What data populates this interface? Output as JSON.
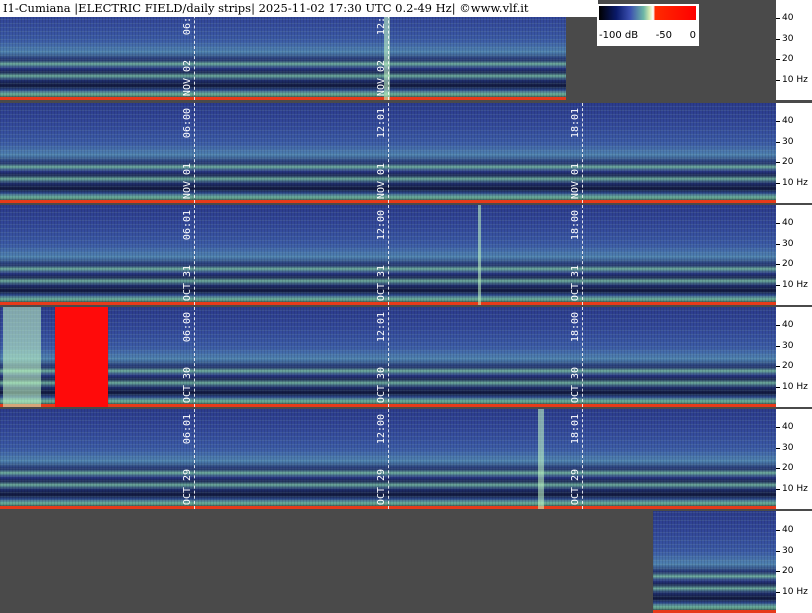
{
  "header": {
    "title": "I1-Cumiana |ELECTRIC FIELD/daily strips| 2025-11-02 17:30 UTC 0.2-49 Hz| ©www.vlf.it"
  },
  "legend": {
    "ticks": [
      "-100 dB",
      "-50",
      "0"
    ]
  },
  "colors": {
    "background": "#4a4a4a",
    "floor": "#e63a1a",
    "saturated": "#ff0000"
  },
  "chart_data": {
    "type": "heatmap",
    "title": "I1-Cumiana |ELECTRIC FIELD/daily strips| 2025-11-02 17:30 UTC 0.2-49 Hz| ©www.vlf.it",
    "colorbar": {
      "min": -100,
      "max": 0,
      "unit": "dB",
      "ticks": [
        "-100 dB",
        "-50",
        "0"
      ]
    },
    "y_axis": {
      "unit": "Hz",
      "range": [
        0.2,
        49
      ],
      "ticks": [
        "40",
        "30",
        "20",
        "10 Hz"
      ]
    },
    "strips": [
      {
        "name": "strip-nov02",
        "date": "NOV 02",
        "coverage": [
          0,
          17.5
        ],
        "markers": [
          {
            "hour": 6,
            "date": "NOV 02",
            "time": "06:01"
          },
          {
            "hour": 12,
            "date": "NOV 02",
            "time": "12:00"
          }
        ]
      },
      {
        "name": "strip-nov01",
        "date": "NOV 01",
        "coverage": [
          0,
          24
        ],
        "markers": [
          {
            "hour": 6,
            "date": "NOV 01",
            "time": "06:00"
          },
          {
            "hour": 12,
            "date": "NOV 01",
            "time": "12:01"
          },
          {
            "hour": 18,
            "date": "NOV 01",
            "time": "18:01"
          }
        ]
      },
      {
        "name": "strip-oct31",
        "date": "OCT 31",
        "coverage": [
          0,
          24
        ],
        "markers": [
          {
            "hour": 6,
            "date": "OCT 31",
            "time": "06:01"
          },
          {
            "hour": 12,
            "date": "OCT 31",
            "time": "12:00"
          },
          {
            "hour": 18,
            "date": "OCT 31",
            "time": "18:00"
          }
        ]
      },
      {
        "name": "strip-oct30",
        "date": "OCT 30",
        "coverage": [
          0,
          24
        ],
        "markers": [
          {
            "hour": 6,
            "date": "OCT 30",
            "time": "06:00"
          },
          {
            "hour": 12,
            "date": "OCT 30",
            "time": "12:01"
          },
          {
            "hour": 18,
            "date": "OCT 30",
            "time": "18:00"
          }
        ]
      },
      {
        "name": "strip-oct29",
        "date": "OCT 29",
        "coverage": [
          0,
          24
        ],
        "markers": [
          {
            "hour": 6,
            "date": "OCT 29",
            "time": "06:01"
          },
          {
            "hour": 12,
            "date": "OCT 29",
            "time": "12:00"
          },
          {
            "hour": 18,
            "date": "OCT 29",
            "time": "18:01"
          }
        ]
      },
      {
        "name": "strip-oct28",
        "date": "",
        "coverage": [
          20.2,
          24
        ],
        "markers": []
      }
    ]
  }
}
